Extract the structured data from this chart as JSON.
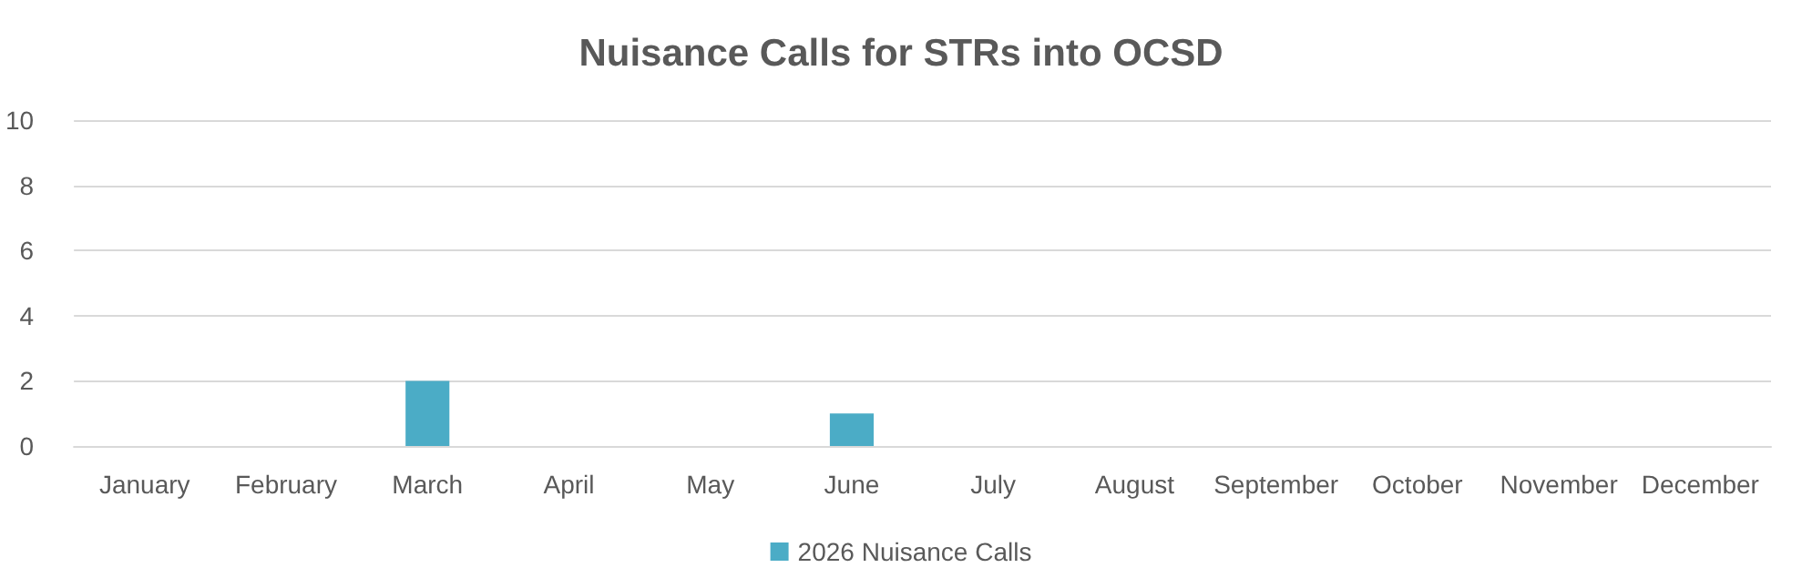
{
  "chart_data": {
    "type": "bar",
    "title": "Nuisance Calls for STRs into OCSD",
    "categories": [
      "January",
      "February",
      "March",
      "April",
      "May",
      "June",
      "July",
      "August",
      "September",
      "October",
      "November",
      "December"
    ],
    "series": [
      {
        "name": "2026 Nuisance Calls",
        "color": "#4bacc6",
        "values": [
          0,
          0,
          2,
          0,
          0,
          1,
          0,
          0,
          0,
          0,
          0,
          0
        ]
      }
    ],
    "ylim": [
      0,
      10
    ],
    "yticks": [
      0,
      2,
      4,
      6,
      8,
      10
    ],
    "grid": "y",
    "legend": "bottom"
  }
}
